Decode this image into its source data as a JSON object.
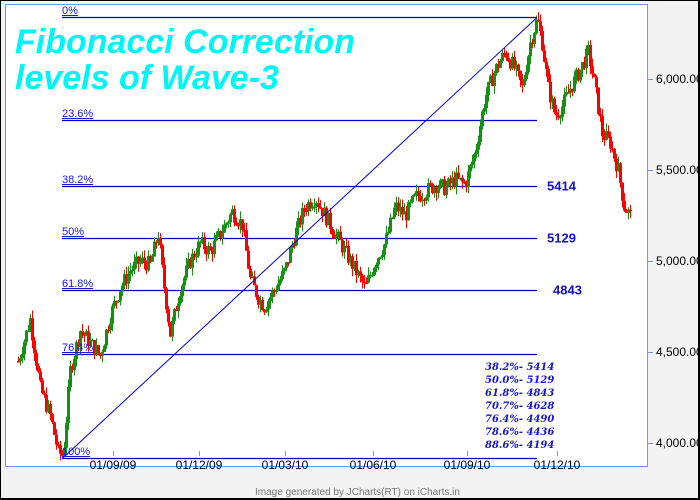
{
  "chart_data": {
    "type": "candlestick",
    "title": "Fibonacci Correction levels of Wave-3",
    "xlabel": "",
    "ylabel": "",
    "ylim": [
      3860,
      6400
    ],
    "y_ticks": [
      {
        "label": "6,000.00",
        "value": 6000
      },
      {
        "label": "5,500.00",
        "value": 5500
      },
      {
        "label": "5,000.00",
        "value": 5000
      },
      {
        "label": "4,500.00",
        "value": 4500
      },
      {
        "label": "4,000.00",
        "value": 4000
      }
    ],
    "x_ticks": [
      {
        "label": "01/09/09",
        "x": 113
      },
      {
        "label": "01/12/09",
        "x": 199
      },
      {
        "label": "01/03/10",
        "x": 285
      },
      {
        "label": "01/06/10",
        "x": 373
      },
      {
        "label": "01/09/10",
        "x": 467
      },
      {
        "label": "01/12/10",
        "x": 557
      }
    ],
    "grid": false,
    "fib_levels": [
      {
        "label": "0%",
        "value": 6338
      },
      {
        "label": "23.6%",
        "value": 5772
      },
      {
        "label": "38.2%",
        "value": 5414
      },
      {
        "label": "50%",
        "value": 5129
      },
      {
        "label": "61.8%",
        "value": 4843
      },
      {
        "label": "76.4%",
        "value": 4490
      },
      {
        "label": "100%",
        "value": 3918
      }
    ],
    "fib_value_labels": [
      {
        "text": "5414",
        "value": 5414
      },
      {
        "text": "5129",
        "value": 5129
      },
      {
        "text": "4843",
        "value": 4843
      }
    ],
    "trendline": {
      "from": {
        "x": 63,
        "value": 3918
      },
      "to": {
        "x": 537,
        "value": 6338
      }
    },
    "price_waypoints": [
      [
        18,
        4450
      ],
      [
        30,
        4680
      ],
      [
        40,
        4300
      ],
      [
        50,
        4150
      ],
      [
        58,
        3950
      ],
      [
        63,
        3930
      ],
      [
        70,
        4400
      ],
      [
        80,
        4620
      ],
      [
        90,
        4550
      ],
      [
        100,
        4480
      ],
      [
        110,
        4700
      ],
      [
        120,
        4850
      ],
      [
        130,
        4950
      ],
      [
        140,
        5000
      ],
      [
        150,
        4980
      ],
      [
        158,
        5150
      ],
      [
        163,
        4900
      ],
      [
        170,
        4600
      ],
      [
        180,
        4850
      ],
      [
        190,
        5000
      ],
      [
        200,
        5100
      ],
      [
        210,
        5050
      ],
      [
        220,
        5150
      ],
      [
        232,
        5270
      ],
      [
        242,
        5200
      ],
      [
        250,
        4900
      ],
      [
        258,
        4800
      ],
      [
        264,
        4750
      ],
      [
        275,
        4850
      ],
      [
        285,
        4950
      ],
      [
        295,
        5150
      ],
      [
        305,
        5300
      ],
      [
        315,
        5350
      ],
      [
        325,
        5250
      ],
      [
        335,
        5150
      ],
      [
        345,
        5050
      ],
      [
        355,
        4950
      ],
      [
        365,
        4850
      ],
      [
        375,
        5000
      ],
      [
        385,
        5100
      ],
      [
        395,
        5300
      ],
      [
        405,
        5250
      ],
      [
        415,
        5350
      ],
      [
        425,
        5380
      ],
      [
        435,
        5420
      ],
      [
        445,
        5400
      ],
      [
        455,
        5450
      ],
      [
        465,
        5420
      ],
      [
        475,
        5600
      ],
      [
        485,
        5900
      ],
      [
        495,
        6050
      ],
      [
        505,
        6150
      ],
      [
        515,
        6050
      ],
      [
        522,
        5950
      ],
      [
        530,
        6200
      ],
      [
        537,
        6330
      ],
      [
        542,
        6200
      ],
      [
        548,
        5950
      ],
      [
        555,
        5800
      ],
      [
        562,
        5850
      ],
      [
        570,
        5950
      ],
      [
        580,
        6050
      ],
      [
        588,
        6150
      ],
      [
        595,
        5950
      ],
      [
        602,
        5700
      ],
      [
        610,
        5650
      ],
      [
        618,
        5500
      ],
      [
        624,
        5300
      ],
      [
        630,
        5250
      ]
    ],
    "summary": [
      "38.2%- 5414",
      "50.0%- 5129",
      "61.8%- 4843",
      "70.7%- 4628",
      "76.4%- 4490",
      "78.6%- 4436",
      "88.6%- 4194"
    ],
    "colors": {
      "up": "#159015",
      "down": "#ff0000",
      "fib_line": "#0000cc",
      "title": "#00f5f5",
      "axis": "#6f98e8"
    }
  },
  "footer": "Image generated by JCharts(RT) on iCharts.in"
}
